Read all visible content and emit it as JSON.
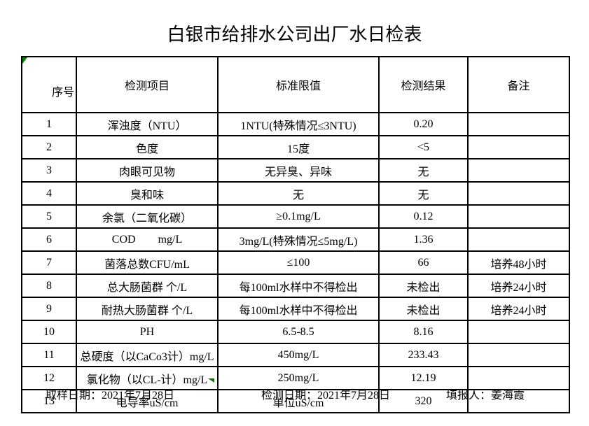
{
  "title": "白银市给排水公司出厂水日检表",
  "table": {
    "headers": [
      "序号",
      "检测项目",
      "标准限值",
      "检测结果",
      "备注"
    ],
    "rows": [
      {
        "no": "1",
        "item": "浑浊度（NTU）",
        "limit": "1NTU(特殊情况≤3NTU)",
        "result": "0.20",
        "remark": ""
      },
      {
        "no": "2",
        "item": "色度",
        "limit": "15度",
        "result": "<5",
        "remark": ""
      },
      {
        "no": "3",
        "item": "肉眼可见物",
        "limit": "无异臭、异味",
        "result": "无",
        "remark": ""
      },
      {
        "no": "4",
        "item": "臭和味",
        "limit": "无",
        "result": "无",
        "remark": ""
      },
      {
        "no": "5",
        "item": "余氯（二氧化碳）",
        "limit": "≥0.1mg/L",
        "result": "0.12",
        "remark": ""
      },
      {
        "no": "6",
        "item": "COD        mg/L",
        "limit": "3mg/L(特殊情况≤5mg/L)",
        "result": "1.36",
        "remark": ""
      },
      {
        "no": "7",
        "item": "菌落总数CFU/mL",
        "limit": "≤100",
        "result": "66",
        "remark": "培养48小时"
      },
      {
        "no": "8",
        "item": "总大肠菌群 个/L",
        "limit": "每100ml水样中不得检出",
        "result": "未检出",
        "remark": "培养24小时"
      },
      {
        "no": "9",
        "item": "耐热大肠菌群 个/L",
        "limit": "每100ml水样中不得检出",
        "result": "未检出",
        "remark": "培养24小时"
      },
      {
        "no": "10",
        "item": "PH",
        "limit": "6.5-8.5",
        "result": "8.16",
        "remark": ""
      },
      {
        "no": "11",
        "item": "总硬度（以CaCo3计）mg/L",
        "limit": "450mg/L",
        "result": "233.43",
        "remark": ""
      },
      {
        "no": "12",
        "item": "氯化物（以CL-计）mg/L",
        "limit": "250mg/L",
        "result": "12.19",
        "remark": ""
      },
      {
        "no": "13",
        "item": "电导率uS/cm",
        "limit": "单位uS/cm",
        "result": "320",
        "remark": ""
      }
    ]
  },
  "footer": {
    "sampling_date": "取样日期：2021年7月28日",
    "test_date": "检测日期：2021年7月28日",
    "reporter": "填报人：姜海霞"
  },
  "colors": {
    "background": "#ffffff",
    "border": "#000000",
    "marker_green": "#0a7a0a"
  },
  "icons": {
    "cell_corner_marker": "excel-green-corner-triangle",
    "table_bottom_marker": "excel-green-bottom-triangle"
  }
}
